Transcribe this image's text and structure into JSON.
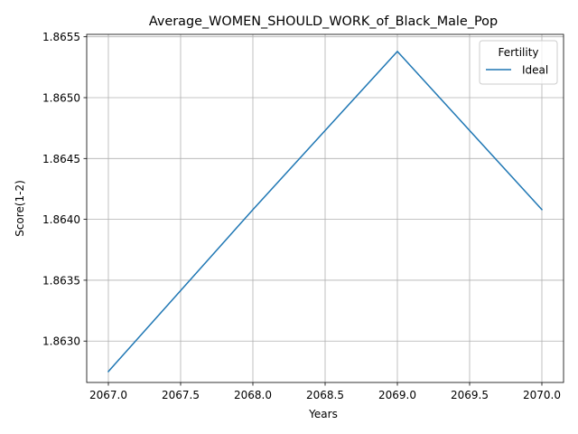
{
  "chart_data": {
    "type": "line",
    "title": "Average_WOMEN_SHOULD_WORK_of_Black_Male_Pop",
    "xlabel": "Years",
    "ylabel": "Score(1-2)",
    "x": [
      2067,
      2068,
      2069,
      2070
    ],
    "series": [
      {
        "name": "Ideal",
        "values": [
          1.86275,
          1.86408,
          1.86538,
          1.86408
        ],
        "color": "#1f77b4"
      }
    ],
    "xlim": [
      2066.85,
      2070.15
    ],
    "ylim": [
      1.86266,
      1.86552
    ],
    "xticks": [
      2067.0,
      2067.5,
      2068.0,
      2068.5,
      2069.0,
      2069.5,
      2070.0
    ],
    "xtick_labels": [
      "2067.0",
      "2067.5",
      "2068.0",
      "2068.5",
      "2069.0",
      "2069.5",
      "2070.0"
    ],
    "yticks": [
      1.863,
      1.8635,
      1.864,
      1.8645,
      1.865,
      1.8655
    ],
    "ytick_labels": [
      "1.8630",
      "1.8635",
      "1.8640",
      "1.8645",
      "1.8650",
      "1.8655"
    ],
    "grid": true,
    "legend_title": "Fertility",
    "legend_placement": "top-right"
  }
}
